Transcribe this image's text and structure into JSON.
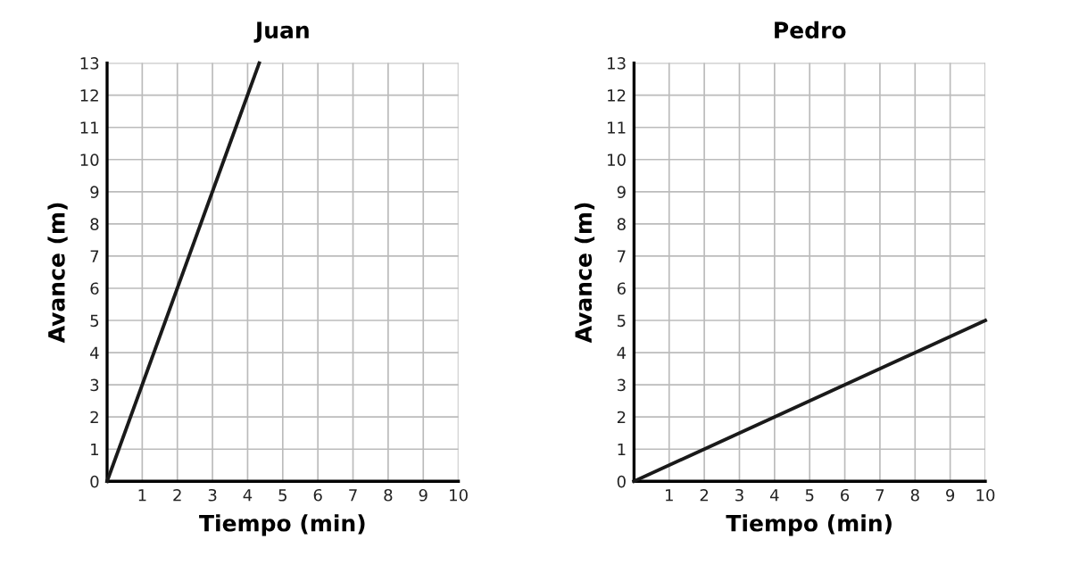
{
  "chart_data": [
    {
      "type": "line",
      "title": "Juan",
      "xlabel": "Tiempo (min)",
      "ylabel": "Avance (m)",
      "x": [
        0,
        4.33
      ],
      "series": [
        {
          "color": "#1a1a1a",
          "values": [
            0,
            13
          ]
        }
      ],
      "xlim": [
        0,
        10
      ],
      "ylim": [
        0,
        13
      ],
      "xticks": [
        1,
        2,
        3,
        4,
        5,
        6,
        7,
        8,
        9,
        10
      ],
      "yticks": [
        0,
        1,
        2,
        3,
        4,
        5,
        6,
        7,
        8,
        9,
        10,
        11,
        12,
        13
      ],
      "grid": true
    },
    {
      "type": "line",
      "title": "Pedro",
      "xlabel": "Tiempo (min)",
      "ylabel": "Avance (m)",
      "x": [
        0,
        10
      ],
      "series": [
        {
          "color": "#1a1a1a",
          "values": [
            0,
            5
          ]
        }
      ],
      "xlim": [
        0,
        10
      ],
      "ylim": [
        0,
        13
      ],
      "xticks": [
        1,
        2,
        3,
        4,
        5,
        6,
        7,
        8,
        9,
        10
      ],
      "yticks": [
        0,
        1,
        2,
        3,
        4,
        5,
        6,
        7,
        8,
        9,
        10,
        11,
        12,
        13
      ],
      "grid": true
    }
  ]
}
